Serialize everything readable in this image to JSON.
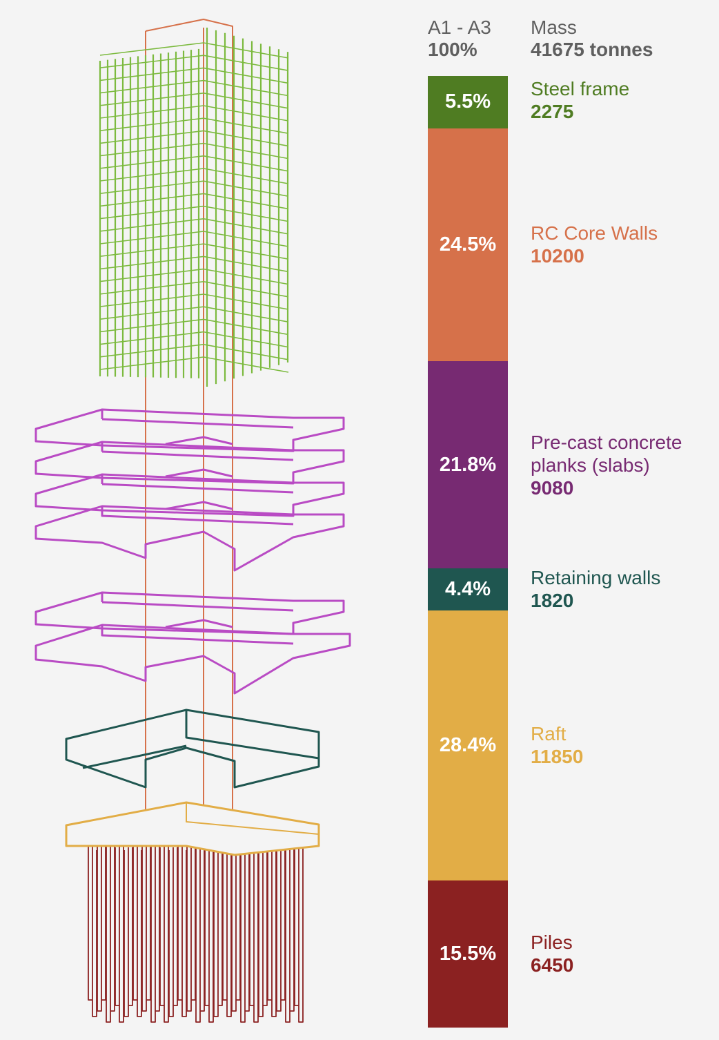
{
  "header": {
    "stage_label": "A1 - A3",
    "stage_value": "100%",
    "mass_label": "Mass",
    "mass_value": "41675 tonnes"
  },
  "colors": {
    "steel": "#4f7c22",
    "steel_line": "#7cba3f",
    "core": "#d6714a",
    "slabs": "#772a72",
    "slabs_line": "#b94bc4",
    "retaining": "#1f5650",
    "raft": "#e2ad46",
    "piles": "#8b2121",
    "header_text": "#5f5f5f"
  },
  "chart_data": {
    "type": "bar",
    "stacked": true,
    "orientation": "vertical",
    "categories": [
      "Steel frame",
      "RC Core Walls",
      "Pre-cast concrete planks (slabs)",
      "Retaining walls",
      "Raft",
      "Piles"
    ],
    "percent_labels": [
      "5.5%",
      "24.5%",
      "21.8%",
      "4.4%",
      "28.4%",
      "15.5%"
    ],
    "percents": [
      5.5,
      24.5,
      21.8,
      4.4,
      28.4,
      15.5
    ],
    "values": [
      2275,
      10200,
      9080,
      1820,
      11850,
      6450
    ],
    "value_labels": [
      "2275",
      "10200",
      "9080",
      "1820",
      "11850",
      "6450"
    ],
    "unit": "tonnes",
    "total": 41675,
    "colors": [
      "#4f7c22",
      "#d6714a",
      "#772a72",
      "#1f5650",
      "#e2ad46",
      "#8b2121"
    ],
    "legend": "right"
  }
}
